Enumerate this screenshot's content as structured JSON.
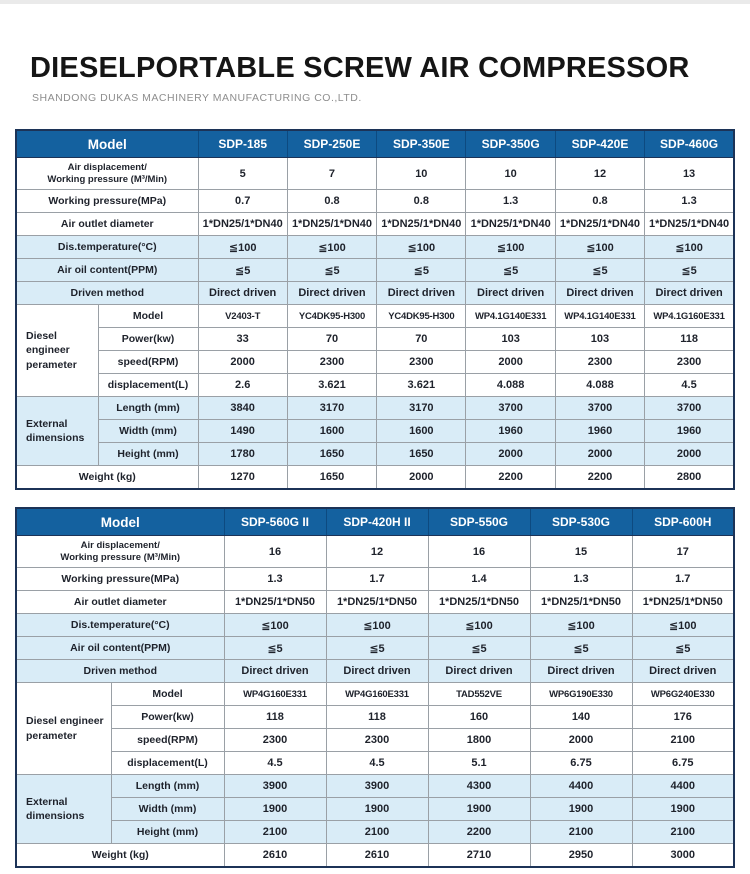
{
  "page": {
    "title": "DIESELPORTABLE SCREW AIR COMPRESSOR",
    "subtitle": "SHANDONG DUKAS MACHINERY MANUFACTURING CO.,LTD."
  },
  "colors": {
    "header_blue": "#14619f",
    "row_shade_blue": "#d9ecf7",
    "outer_border": "#1c3357",
    "grid_line": "#9aa0a6",
    "title_text": "#151515",
    "subtitle_text": "#8e8e8e"
  },
  "tables": [
    {
      "name": "spec-table-1",
      "header": [
        "Model",
        "SDP-185",
        "SDP-250E",
        "SDP-350E",
        "SDP-350G",
        "SDP-420E",
        "SDP-460G"
      ],
      "rows": [
        {
          "label": "Air displacement/",
          "label2": "Working pressure (M³/Min)",
          "tall": true,
          "shade": false,
          "values": [
            "5",
            "7",
            "10",
            "10",
            "12",
            "13"
          ]
        },
        {
          "label": "Working pressure(MPa)",
          "shade": false,
          "values": [
            "0.7",
            "0.8",
            "0.8",
            "1.3",
            "0.8",
            "1.3"
          ]
        },
        {
          "label": "Air outlet diameter",
          "shade": false,
          "values": [
            "1*DN25/1*DN40",
            "1*DN25/1*DN40",
            "1*DN25/1*DN40",
            "1*DN25/1*DN40",
            "1*DN25/1*DN40",
            "1*DN25/1*DN40"
          ]
        },
        {
          "label": "Dis.temperature(°C)",
          "shade": true,
          "values": [
            "≦100",
            "≦100",
            "≦100",
            "≦100",
            "≦100",
            "≦100"
          ]
        },
        {
          "label": "Air oil content(PPM)",
          "shade": true,
          "values": [
            "≦5",
            "≦5",
            "≦5",
            "≦5",
            "≦5",
            "≦5"
          ]
        },
        {
          "label": "Driven method",
          "shade": true,
          "values": [
            "Direct driven",
            "Direct driven",
            "Direct driven",
            "Direct driven",
            "Direct driven",
            "Direct driven"
          ]
        },
        {
          "group": {
            "label": "Diesel engineer perameter",
            "span": 4
          },
          "sub": true,
          "label": "Model",
          "shade": false,
          "small": true,
          "values": [
            "V2403-T",
            "YC4DK95-H300",
            "YC4DK95-H300",
            "WP4.1G140E331",
            "WP4.1G140E331",
            "WP4.1G160E331"
          ]
        },
        {
          "sub": true,
          "label": "Power(kw)",
          "shade": false,
          "values": [
            "33",
            "70",
            "70",
            "103",
            "103",
            "118"
          ]
        },
        {
          "sub": true,
          "label": "speed(RPM)",
          "shade": false,
          "values": [
            "2000",
            "2300",
            "2300",
            "2000",
            "2300",
            "2300"
          ]
        },
        {
          "sub": true,
          "label": "displacement(L)",
          "shade": false,
          "values": [
            "2.6",
            "3.621",
            "3.621",
            "4.088",
            "4.088",
            "4.5"
          ]
        },
        {
          "group": {
            "label": "External dimensions",
            "span": 3
          },
          "sub": true,
          "label": "Length (mm)",
          "shade": true,
          "values": [
            "3840",
            "3170",
            "3170",
            "3700",
            "3700",
            "3700"
          ]
        },
        {
          "sub": true,
          "label": "Width (mm)",
          "shade": true,
          "values": [
            "1490",
            "1600",
            "1600",
            "1960",
            "1960",
            "1960"
          ]
        },
        {
          "sub": true,
          "label": "Height (mm)",
          "shade": true,
          "values": [
            "1780",
            "1650",
            "1650",
            "2000",
            "2000",
            "2000"
          ]
        },
        {
          "label": "Weight (kg)",
          "shade": false,
          "values": [
            "1270",
            "1650",
            "2000",
            "2200",
            "2200",
            "2800"
          ]
        }
      ]
    },
    {
      "name": "spec-table-2",
      "header": [
        "Model",
        "SDP-560G II",
        "SDP-420H II",
        "SDP-550G",
        "SDP-530G",
        "SDP-600H"
      ],
      "rows": [
        {
          "label": "Air displacement/",
          "label2": "Working pressure (M³/Min)",
          "tall": true,
          "shade": false,
          "values": [
            "16",
            "12",
            "16",
            "15",
            "17"
          ]
        },
        {
          "label": "Working pressure(MPa)",
          "shade": false,
          "values": [
            "1.3",
            "1.7",
            "1.4",
            "1.3",
            "1.7"
          ]
        },
        {
          "label": "Air outlet diameter",
          "shade": false,
          "values": [
            "1*DN25/1*DN50",
            "1*DN25/1*DN50",
            "1*DN25/1*DN50",
            "1*DN25/1*DN50",
            "1*DN25/1*DN50"
          ]
        },
        {
          "label": "Dis.temperature(°C)",
          "shade": true,
          "values": [
            "≦100",
            "≦100",
            "≦100",
            "≦100",
            "≦100"
          ]
        },
        {
          "label": "Air oil content(PPM)",
          "shade": true,
          "values": [
            "≦5",
            "≦5",
            "≦5",
            "≦5",
            "≦5"
          ]
        },
        {
          "label": "Driven method",
          "shade": true,
          "values": [
            "Direct driven",
            "Direct driven",
            "Direct driven",
            "Direct driven",
            "Direct driven"
          ]
        },
        {
          "group": {
            "label": "Diesel engineer perameter",
            "span": 4
          },
          "sub": true,
          "label": "Model",
          "shade": false,
          "small": true,
          "values": [
            "WP4G160E331",
            "WP4G160E331",
            "TAD552VE",
            "WP6G190E330",
            "WP6G240E330"
          ]
        },
        {
          "sub": true,
          "label": "Power(kw)",
          "shade": false,
          "values": [
            "118",
            "118",
            "160",
            "140",
            "176"
          ]
        },
        {
          "sub": true,
          "label": "speed(RPM)",
          "shade": false,
          "values": [
            "2300",
            "2300",
            "1800",
            "2000",
            "2100"
          ]
        },
        {
          "sub": true,
          "label": "displacement(L)",
          "shade": false,
          "values": [
            "4.5",
            "4.5",
            "5.1",
            "6.75",
            "6.75"
          ]
        },
        {
          "group": {
            "label": "External dimensions",
            "span": 3
          },
          "sub": true,
          "label": "Length (mm)",
          "shade": true,
          "values": [
            "3900",
            "3900",
            "4300",
            "4400",
            "4400"
          ]
        },
        {
          "sub": true,
          "label": "Width (mm)",
          "shade": true,
          "values": [
            "1900",
            "1900",
            "1900",
            "1900",
            "1900"
          ]
        },
        {
          "sub": true,
          "label": "Height (mm)",
          "shade": true,
          "values": [
            "2100",
            "2100",
            "2200",
            "2100",
            "2100"
          ]
        },
        {
          "label": "Weight (kg)",
          "shade": false,
          "values": [
            "2610",
            "2610",
            "2710",
            "2950",
            "3000"
          ]
        }
      ]
    }
  ]
}
